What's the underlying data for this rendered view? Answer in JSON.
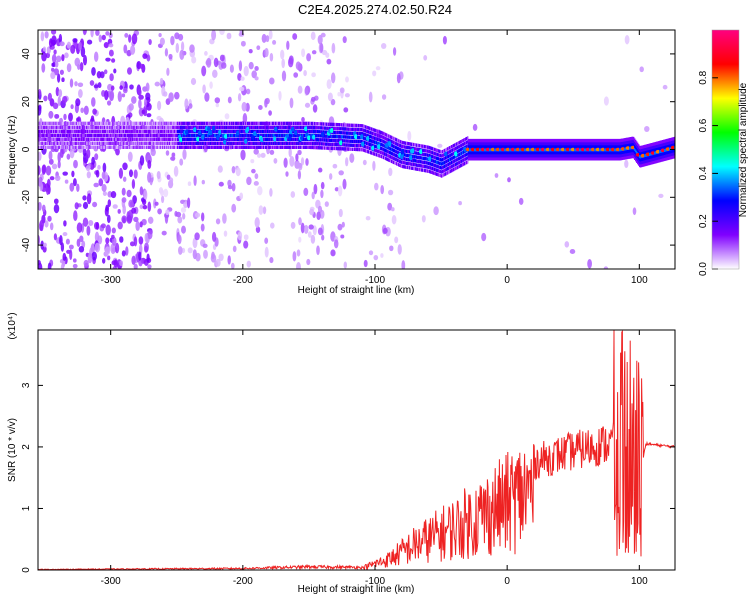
{
  "title": "C2E4.2025.274.02.50.R24",
  "chart_data": [
    {
      "type": "heatmap",
      "xlabel": "Height of straight line (km)",
      "ylabel": "Frequency (Hz)",
      "xlim": [
        -355,
        127
      ],
      "ylim": [
        -50,
        50
      ],
      "xticks": [
        -300,
        -200,
        -100,
        0,
        100
      ],
      "yticks": [
        -40,
        -20,
        0,
        20,
        40
      ],
      "colorbar": {
        "label": "Normalized spectral amplitude",
        "range": [
          0,
          1
        ],
        "ticks": [
          "0.0",
          "0.2",
          "0.4",
          "0.6",
          "0.8"
        ],
        "colors": [
          "#ffffff",
          "#8000ff",
          "#0000ff",
          "#00ffff",
          "#00ff00",
          "#ffff00",
          "#ff0000",
          "#ff0080"
        ]
      },
      "ridge": [
        {
          "x": -355,
          "y": 6
        },
        {
          "x": -250,
          "y": 6
        },
        {
          "x": -150,
          "y": 6
        },
        {
          "x": -110,
          "y": 5
        },
        {
          "x": -95,
          "y": 2
        },
        {
          "x": -80,
          "y": -2
        },
        {
          "x": -60,
          "y": -4
        },
        {
          "x": -50,
          "y": -6
        },
        {
          "x": -40,
          "y": -3
        },
        {
          "x": -30,
          "y": 0
        },
        {
          "x": 0,
          "y": 0
        },
        {
          "x": 50,
          "y": 0
        },
        {
          "x": 85,
          "y": 0
        },
        {
          "x": 95,
          "y": 1
        },
        {
          "x": 100,
          "y": -3
        },
        {
          "x": 127,
          "y": 1
        }
      ]
    },
    {
      "type": "line",
      "xlabel": "Height of straight line (km)",
      "ylabel": "SNR (10 * v/v)",
      "yscale_label": "(x10⁴)",
      "xlim": [
        -355,
        127
      ],
      "ylim": [
        0,
        3.9
      ],
      "xticks": [
        -300,
        -200,
        -100,
        0,
        100
      ],
      "yticks": [
        0,
        1,
        2,
        3
      ],
      "series": [
        {
          "color": "#ee2222",
          "envelope": [
            {
              "x": -355,
              "y": 0.01
            },
            {
              "x": -200,
              "y": 0.03
            },
            {
              "x": -150,
              "y": 0.06
            },
            {
              "x": -110,
              "y": 0.05
            },
            {
              "x": -90,
              "y": 0.25
            },
            {
              "x": -70,
              "y": 0.6
            },
            {
              "x": -55,
              "y": 0.8
            },
            {
              "x": -40,
              "y": 1.0
            },
            {
              "x": -20,
              "y": 1.3
            },
            {
              "x": 0,
              "y": 1.6
            },
            {
              "x": 20,
              "y": 1.95
            },
            {
              "x": 50,
              "y": 2.15
            },
            {
              "x": 80,
              "y": 2.3
            },
            {
              "x": 90,
              "y": 2.4
            },
            {
              "x": 100,
              "y": 1.5
            },
            {
              "x": 105,
              "y": 2.05
            },
            {
              "x": 127,
              "y": 2.0
            }
          ]
        }
      ]
    }
  ]
}
